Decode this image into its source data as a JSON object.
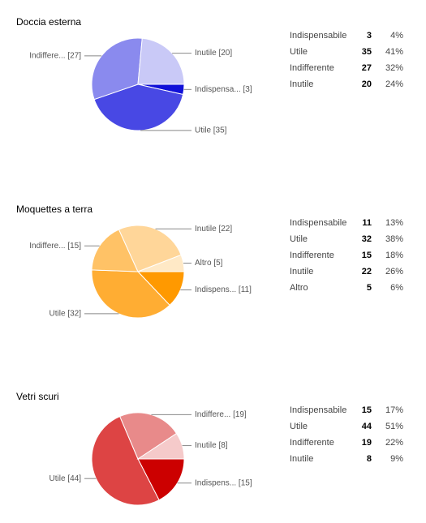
{
  "chart_data": [
    {
      "type": "pie",
      "title": "Doccia esterna",
      "categories": [
        "Indispensabile",
        "Utile",
        "Indifferente",
        "Inutile"
      ],
      "values": [
        3,
        35,
        27,
        20
      ],
      "colors": [
        "#1010d8",
        "#4848e4",
        "#8a8aee",
        "#c9c9f7"
      ],
      "slice_labels": [
        "Indispensa... [3]",
        "Utile  [35]",
        "Indiffere... [27]",
        "Inutile [20]"
      ],
      "shares": [
        4,
        41,
        32,
        24
      ],
      "share_labels": [
        "4%",
        "41%",
        "32%",
        "24%"
      ]
    },
    {
      "type": "pie",
      "title": "Moquettes a terra",
      "categories": [
        "Indispensabile",
        "Utile",
        "Indifferente",
        "Inutile",
        "Altro"
      ],
      "values": [
        11,
        32,
        15,
        22,
        5
      ],
      "colors": [
        "#ff9900",
        "#ffad33",
        "#ffc266",
        "#ffd699",
        "#ffe9c6"
      ],
      "slice_labels": [
        "Indispens... [11]",
        "Utile  [32]",
        "Indiffere... [15]",
        "Inutile [22]",
        "Altro [5]"
      ],
      "shares": [
        13,
        38,
        18,
        26,
        6
      ],
      "share_labels": [
        "13%",
        "38%",
        "18%",
        "26%",
        "6%"
      ]
    },
    {
      "type": "pie",
      "title": "Vetri scuri",
      "categories": [
        "Indispensabile",
        "Utile",
        "Indifferente",
        "Inutile"
      ],
      "values": [
        15,
        44,
        19,
        8
      ],
      "colors": [
        "#cc0000",
        "#dd4444",
        "#e88a8a",
        "#f5caca"
      ],
      "slice_labels": [
        "Indispens... [15]",
        "Utile  [44]",
        "Indiffere... [19]",
        "Inutile [8]"
      ],
      "shares": [
        17,
        51,
        22,
        9
      ],
      "share_labels": [
        "17%",
        "51%",
        "22%",
        "9%"
      ]
    }
  ]
}
